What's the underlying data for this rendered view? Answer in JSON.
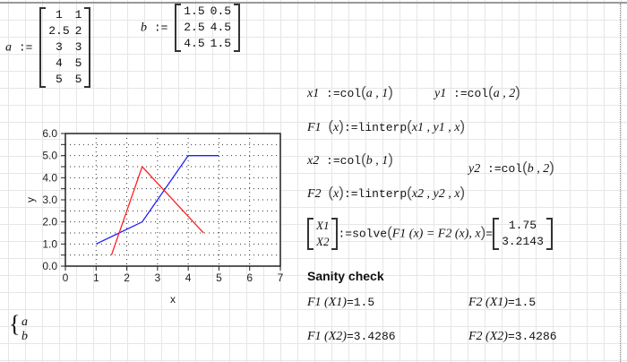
{
  "matrix_a": {
    "name": "a",
    "assign": ":=",
    "rows": [
      [
        "1",
        "1"
      ],
      [
        "2.5",
        "2"
      ],
      [
        "3",
        "3"
      ],
      [
        "4",
        "5"
      ],
      [
        "5",
        "5"
      ]
    ]
  },
  "matrix_b": {
    "name": "b",
    "assign": ":=",
    "rows": [
      [
        "1.5",
        "0.5"
      ],
      [
        "2.5",
        "4.5"
      ],
      [
        "4.5",
        "1.5"
      ]
    ]
  },
  "eq": {
    "x1": {
      "lhs": "x1",
      "op": ":=",
      "fn": "col",
      "args": "a , 1"
    },
    "y1": {
      "lhs": "y1",
      "op": ":=",
      "fn": "col",
      "args": "a , 2"
    },
    "F1": {
      "lhs": "F1",
      "arg": "x",
      "op": ":=",
      "fn": "linterp",
      "args": "x1 , y1 , x"
    },
    "x2": {
      "lhs": "x2",
      "op": ":=",
      "fn": "col",
      "args": "b , 1"
    },
    "y2": {
      "lhs": "y2",
      "op": ":=",
      "fn": "col",
      "args": "b , 2"
    },
    "F2": {
      "lhs": "F2",
      "arg": "x",
      "op": ":=",
      "fn": "linterp",
      "args": "x2 , y2 , x"
    },
    "solve": {
      "vars": [
        "X1",
        "X2"
      ],
      "op": ":=",
      "fn": "solve",
      "expr": "F1 (x) = F2 (x), x",
      "eq": "=",
      "result": [
        "1.75",
        "3.2143"
      ]
    }
  },
  "sanity": {
    "heading": "Sanity check",
    "items": [
      {
        "expr": "F1 (X1)",
        "eq": "=",
        "value": "1.5"
      },
      {
        "expr": "F2 (X1)",
        "eq": "=",
        "value": "1.5"
      },
      {
        "expr": "F1 (X2)",
        "eq": "=",
        "value": "3.4286"
      },
      {
        "expr": "F2 (X2)",
        "eq": "=",
        "value": "3.4286"
      }
    ]
  },
  "legend_vars": [
    "a",
    "b"
  ],
  "chart_data": {
    "type": "line",
    "xlabel": "x",
    "ylabel": "y",
    "xlim": [
      0,
      7
    ],
    "ylim": [
      0,
      6
    ],
    "xticks": [
      "0",
      "1",
      "2",
      "3",
      "4",
      "5",
      "6",
      "7"
    ],
    "yticks": [
      "0.0",
      "1.0",
      "2.0",
      "3.0",
      "4.0",
      "5.0",
      "6.0"
    ],
    "grid": "dotted",
    "series": [
      {
        "color": "#2020ff",
        "x": [
          1,
          2.5,
          3,
          4,
          5
        ],
        "y": [
          1,
          2,
          3,
          5,
          5
        ]
      },
      {
        "color": "#ff2020",
        "x": [
          1.5,
          2.5,
          4.5
        ],
        "y": [
          0.5,
          4.5,
          1.5
        ]
      }
    ]
  }
}
